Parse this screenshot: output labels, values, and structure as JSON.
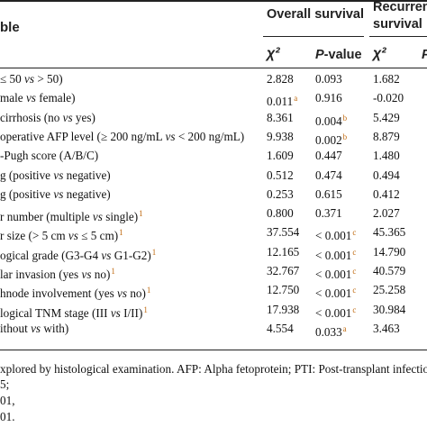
{
  "header": {
    "variable_col": "ble",
    "overall_survival": "Overall survival",
    "recurrence_line1": "Recurren",
    "recurrence_line2": "survival",
    "chi2_os": "χ²",
    "pvalue_os_p": "P",
    "pvalue_os_rest": "-value",
    "chi2_rec": "χ²",
    "pvalue_rec_cut": "P"
  },
  "rows": [
    {
      "variable": "≤ 50 vs > 50)",
      "chi2_os": "2.828",
      "p_os": "0.093",
      "p_os_sup": "",
      "chi2_rec": "1.682"
    },
    {
      "variable": "male vs female)",
      "chi2_os": "0.011",
      "chi2_os_sup": "a",
      "p_os": "0.916",
      "p_os_sup": "",
      "chi2_rec": "-0.020"
    },
    {
      "variable": "cirrhosis (no vs yes)",
      "chi2_os": "8.361",
      "p_os": "0.004",
      "p_os_sup": "b",
      "chi2_rec": "5.429"
    },
    {
      "variable": "operative AFP level (≥ 200 ng/mL vs < 200 ng/mL)",
      "chi2_os": "9.938",
      "p_os": "0.002",
      "p_os_sup": "b",
      "chi2_rec": "8.879"
    },
    {
      "variable": "-Pugh score (A/B/C)",
      "chi2_os": "1.609",
      "p_os": "0.447",
      "p_os_sup": "",
      "chi2_rec": "1.480"
    },
    {
      "variable": "g (positive vs negative)",
      "chi2_os": "0.512",
      "p_os": "0.474",
      "p_os_sup": "",
      "chi2_rec": "0.494"
    },
    {
      "variable": "g (positive vs negative)",
      "chi2_os": "0.253",
      "p_os": "0.615",
      "p_os_sup": "",
      "chi2_rec": "0.412"
    },
    {
      "variable": "r number (multiple vs single)",
      "var_sup": "1",
      "chi2_os": "0.800",
      "p_os": "0.371",
      "p_os_sup": "",
      "chi2_rec": "2.027"
    },
    {
      "variable": "r size (> 5 cm vs ≤ 5 cm)",
      "var_sup": "1",
      "chi2_os": "37.554",
      "p_os": "< 0.001",
      "p_os_sup": "c",
      "chi2_rec": "45.365"
    },
    {
      "variable": "ogical grade (G3-G4 vs G1-G2)",
      "var_sup": "1",
      "chi2_os": "12.165",
      "p_os": "< 0.001",
      "p_os_sup": "c",
      "chi2_rec": "14.790"
    },
    {
      "variable": "lar invasion (yes vs no)",
      "var_sup": "1",
      "chi2_os": "32.767",
      "p_os": "< 0.001",
      "p_os_sup": "c",
      "chi2_rec": "40.579"
    },
    {
      "variable": "hnode involvement (yes vs no)",
      "var_sup": "1",
      "chi2_os": "12.750",
      "p_os": "< 0.001",
      "p_os_sup": "c",
      "chi2_rec": "25.258"
    },
    {
      "variable": "logical TNM stage (III vs I/II)",
      "var_sup": "1",
      "chi2_os": "17.938",
      "p_os": "< 0.001",
      "p_os_sup": "c",
      "chi2_rec": "30.984"
    },
    {
      "variable": "ithout vs with)",
      "chi2_os": "4.554",
      "p_os": "0.033",
      "p_os_sup": "a",
      "chi2_rec": "3.463"
    }
  ],
  "footnotes": [
    "xplored by histological examination. AFP: Alpha fetoprotein; PTI: Post-transplant infection.",
    "5;",
    "01,",
    "01."
  ]
}
